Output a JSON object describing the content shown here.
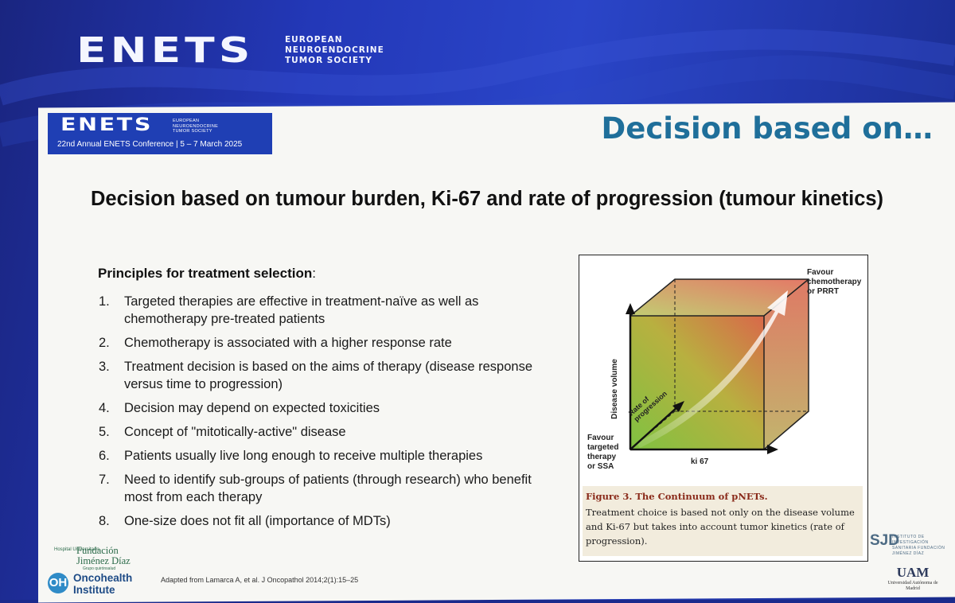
{
  "banner": {
    "logo": "ENETS",
    "org_line1": "EUROPEAN",
    "org_line2": "NEUROENDOCRINE",
    "org_line3": "TUMOR SOCIETY"
  },
  "slide": {
    "header_box": {
      "logo": "ENETS",
      "org_line1": "EUROPEAN",
      "org_line2": "NEUROENDOCRINE",
      "org_line3": "TUMOR SOCIETY",
      "conference": "22nd Annual ENETS Conference | 5 – 7 March 2025"
    },
    "title": "Decision based on…",
    "heading": "Decision based on tumour burden, Ki-67 and rate of progression (tumour kinetics)",
    "principles_title": "Principles for treatment selection",
    "principles_colon": ":",
    "principles": [
      {
        "num": "1.",
        "text": "Targeted therapies are effective in treatment-naïve as well as chemotherapy pre-treated patients"
      },
      {
        "num": "2.",
        "text": "Chemotherapy is associated with a higher response rate"
      },
      {
        "num": "3.",
        "text": "Treatment decision is based on the aims of therapy (disease response versus time to progression)"
      },
      {
        "num": "4.",
        "text": "Decision may depend on expected toxicities"
      },
      {
        "num": "5.",
        "text": "Concept of \"mitotically-active\" disease"
      },
      {
        "num": "6.",
        "text": "Patients usually live long enough to receive multiple therapies"
      },
      {
        "num": "7.",
        "text": "Need to identify sub-groups of patients (through research) who benefit most from each therapy"
      },
      {
        "num": "8.",
        "text": "One-size does not fit all (importance of MDTs)"
      }
    ],
    "credit": "Adapted from Lamarca A, et al. J Oncopathol 2014;2(1):15–25",
    "figure": {
      "label_top_right": [
        "Favour",
        "chemotherapy",
        "or PRRT"
      ],
      "label_bottom_left": [
        "Favour",
        "targeted",
        "therapy",
        "or SSA"
      ],
      "y_axis": "Disease volume",
      "x_axis": "ki 67",
      "diag_axis_1": "Rate of",
      "diag_axis_2": "progression",
      "caption_title": "Figure 3.  The Continuum of pNETs.",
      "caption_text": "Treatment choice is based not only on the disease volume and Ki-67 but takes into account tumor kinetics (rate of progression)."
    },
    "logos": {
      "fjd_small": "Hospital Universitario",
      "fjd_line1": "Fundación",
      "fjd_line2": "Jiménez Díaz",
      "fjd_group": "Grupo quirónsalud",
      "oncohealth_mark": "OH",
      "oncohealth_line1": "Oncohealth",
      "oncohealth_line2": "Institute",
      "iis_mark": "SJD",
      "iis_text": "INSTITUTO DE INVESTIGACIÓN SANITARIA FUNDACIÓN JIMÉNEZ DÍAZ",
      "uam_mark": "UAM",
      "uam_sub": "Universidad Autónoma de Madrid"
    }
  }
}
